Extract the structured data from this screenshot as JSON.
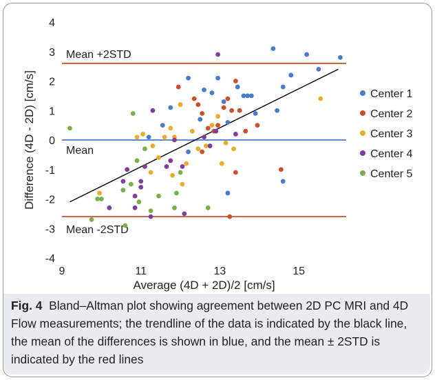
{
  "chart_data": {
    "type": "scatter",
    "xlabel": "Average (4D + 2D)/2 [cm/s]",
    "ylabel": "Difference (4D - 2D) [cm/s]",
    "xlim": [
      9,
      16.2
    ],
    "ylim": [
      -4,
      4
    ],
    "xticks": [
      9,
      11,
      13,
      15
    ],
    "yticks": [
      4,
      3,
      2,
      1,
      0,
      -1,
      -2,
      -3,
      -4
    ],
    "grid": false,
    "legend_position": "right",
    "reference_lines": [
      {
        "label": "Mean +2STD",
        "y": 2.6,
        "color": "#c9502a"
      },
      {
        "label": "Mean",
        "y": 0,
        "color": "#4a7bc8"
      },
      {
        "label": "Mean -2STD",
        "y": -2.6,
        "color": "#c9502a"
      }
    ],
    "trendline": {
      "x": [
        9.2,
        16.0
      ],
      "y": [
        -2.1,
        2.4
      ],
      "color": "#000000"
    },
    "series": [
      {
        "name": "Center 1",
        "color": "#4a7bc8",
        "points": [
          [
            11.55,
            0.5
          ],
          [
            11.75,
            1.1
          ],
          [
            12.2,
            2.1
          ],
          [
            12.5,
            0.7
          ],
          [
            12.6,
            1.7
          ],
          [
            12.8,
            1.6
          ],
          [
            12.95,
            2.1
          ],
          [
            13.1,
            1.3
          ],
          [
            13.2,
            0.6
          ],
          [
            13.45,
            1.8
          ],
          [
            13.6,
            1.5
          ],
          [
            13.7,
            1.5
          ],
          [
            13.8,
            1.5
          ],
          [
            13.9,
            0.9
          ],
          [
            14.35,
            3.1
          ],
          [
            14.45,
            1.0
          ],
          [
            14.6,
            1.8
          ],
          [
            14.8,
            2.2
          ],
          [
            15.2,
            2.9
          ],
          [
            15.5,
            2.4
          ],
          [
            16.05,
            2.8
          ],
          [
            14.6,
            -1.4
          ],
          [
            13.2,
            -1.8
          ],
          [
            12.2,
            -0.4
          ],
          [
            11.2,
            0.1
          ]
        ]
      },
      {
        "name": "Center 2",
        "color": "#c9502a",
        "points": [
          [
            11.95,
            1.8
          ],
          [
            12.35,
            1.4
          ],
          [
            12.45,
            1.2
          ],
          [
            12.55,
            0.9
          ],
          [
            12.7,
            0.4
          ],
          [
            12.85,
            0.3
          ],
          [
            12.95,
            0.5
          ],
          [
            13.1,
            1.1
          ],
          [
            13.2,
            1.4
          ],
          [
            13.3,
            1.0
          ],
          [
            13.4,
            2.0
          ],
          [
            13.5,
            1.0
          ],
          [
            13.65,
            0.3
          ],
          [
            13.95,
            0.5
          ],
          [
            12.55,
            -0.4
          ],
          [
            13.4,
            -1.1
          ],
          [
            13.25,
            -2.6
          ],
          [
            14.55,
            -1.0
          ]
        ]
      },
      {
        "name": "Center 3",
        "color": "#e8ad2e",
        "points": [
          [
            9.95,
            -1.8
          ],
          [
            10.9,
            0.1
          ],
          [
            11.05,
            0.2
          ],
          [
            11.3,
            -0.2
          ],
          [
            11.45,
            -0.6
          ],
          [
            11.6,
            0.1
          ],
          [
            11.75,
            0.4
          ],
          [
            11.85,
            0.1
          ],
          [
            12.0,
            1.2
          ],
          [
            12.05,
            -1.5
          ],
          [
            12.15,
            -0.8
          ],
          [
            12.3,
            0.3
          ],
          [
            12.45,
            -0.3
          ],
          [
            12.65,
            -0.2
          ],
          [
            12.8,
            0.5
          ],
          [
            12.95,
            0.8
          ],
          [
            13.05,
            -0.8
          ],
          [
            13.15,
            -0.1
          ],
          [
            13.35,
            -0.3
          ],
          [
            11.25,
            -1.1
          ],
          [
            11.8,
            -1.2
          ],
          [
            15.55,
            1.4
          ]
        ]
      },
      {
        "name": "Center 4",
        "color": "#7d3f9b",
        "points": [
          [
            10.2,
            -2.3
          ],
          [
            10.55,
            -1.4
          ],
          [
            10.65,
            -1.0
          ],
          [
            10.85,
            -1.9
          ],
          [
            10.85,
            -2.3
          ],
          [
            11.0,
            -1.6
          ],
          [
            11.0,
            -1.4
          ],
          [
            11.1,
            -0.9
          ],
          [
            11.3,
            1.0
          ],
          [
            11.25,
            -2.6
          ],
          [
            11.75,
            -0.7
          ],
          [
            11.85,
            0.0
          ],
          [
            12.05,
            -0.9
          ],
          [
            12.1,
            -2.5
          ],
          [
            12.6,
            0.1
          ],
          [
            12.75,
            -0.2
          ],
          [
            12.9,
            0.3
          ],
          [
            12.95,
            2.9
          ],
          [
            13.4,
            0.2
          ],
          [
            11.65,
            -0.9
          ]
        ]
      },
      {
        "name": "Center 5",
        "color": "#7ab04a",
        "points": [
          [
            9.2,
            0.4
          ],
          [
            9.75,
            -2.7
          ],
          [
            9.9,
            -2.0
          ],
          [
            10.0,
            -2.0
          ],
          [
            10.55,
            -1.7
          ],
          [
            10.6,
            -2.9
          ],
          [
            10.75,
            -1.5
          ],
          [
            10.8,
            0.9
          ],
          [
            10.9,
            -0.7
          ],
          [
            10.95,
            -2.1
          ],
          [
            11.25,
            -2.4
          ],
          [
            11.45,
            -1.9
          ],
          [
            11.85,
            -2.3
          ],
          [
            11.9,
            -1.8
          ],
          [
            12.0,
            -1.1
          ],
          [
            12.7,
            -2.3
          ],
          [
            11.1,
            -0.3
          ]
        ]
      }
    ]
  },
  "caption": {
    "label": "Fig. 4",
    "text": "Bland–Altman plot showing agreement between 2D PC MRI and 4D Flow measurements; the trendline of the data is indicated by the black line, the mean of the differences is shown in blue, and the mean ± 2STD is indicated by the red lines"
  }
}
